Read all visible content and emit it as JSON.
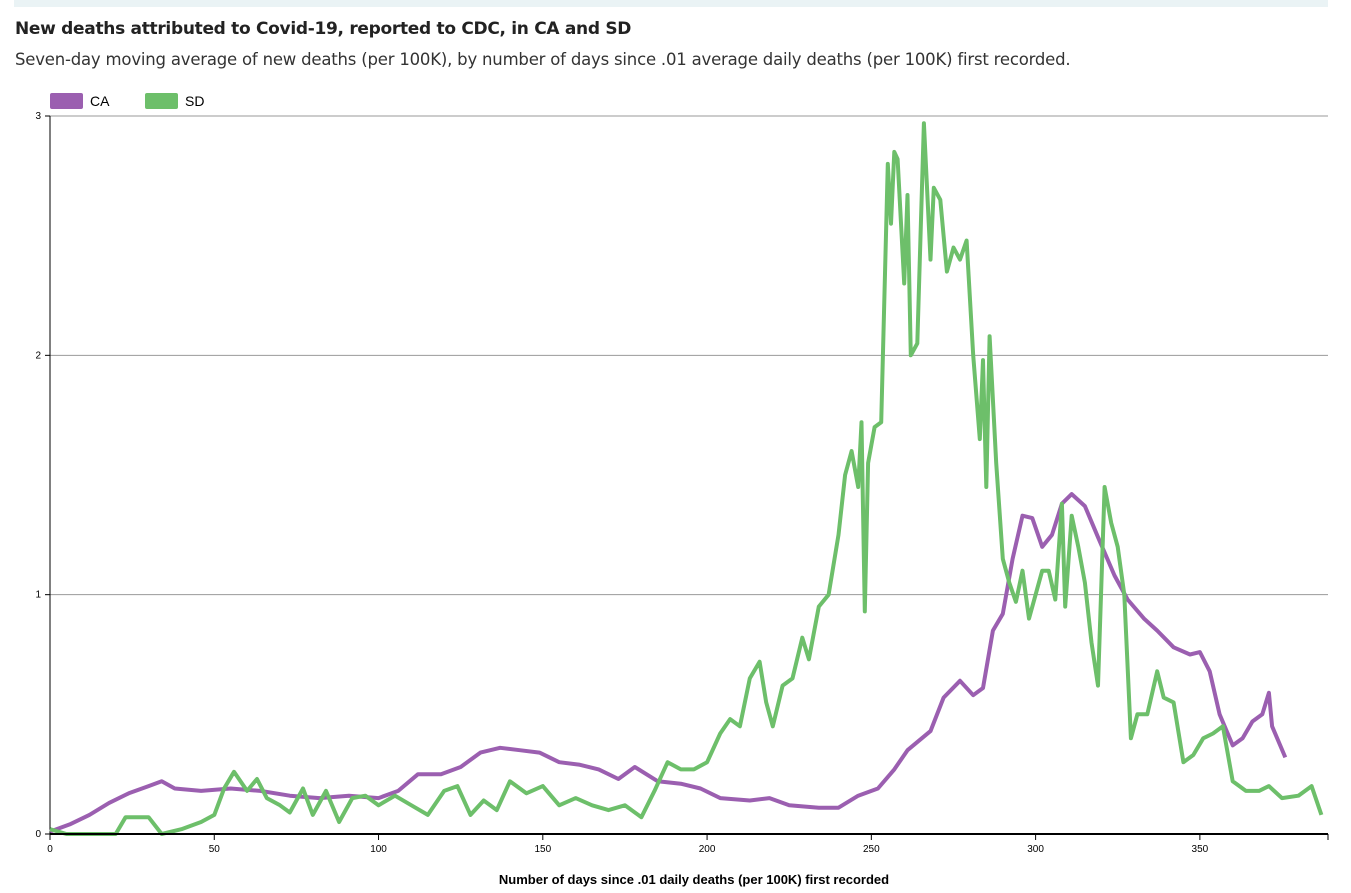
{
  "header": {
    "title": "New deaths attributed to Covid-19, reported to CDC, in CA and SD",
    "subtitle": "Seven-day moving average of new deaths (per 100K), by number of days since .01 average daily deaths (per 100K) first recorded."
  },
  "chart_data": {
    "type": "line",
    "title": "New deaths attributed to Covid-19, reported to CDC, in CA and SD",
    "xlabel": "Number of days since .01 daily deaths (per 100K) first recorded",
    "ylabel": "",
    "xlim": [
      0,
      389
    ],
    "ylim": [
      0,
      3
    ],
    "xticks": [
      "0",
      "50",
      "100",
      "150",
      "200",
      "250",
      "300",
      "350"
    ],
    "yticks": [
      "0",
      "1",
      "2",
      "3"
    ],
    "legend_position": "top-left",
    "series": [
      {
        "name": "CA",
        "color": "#9b5fb0",
        "points": [
          [
            0,
            0.01
          ],
          [
            6,
            0.04
          ],
          [
            12,
            0.08
          ],
          [
            18,
            0.13
          ],
          [
            24,
            0.17
          ],
          [
            30,
            0.2
          ],
          [
            34,
            0.22
          ],
          [
            38,
            0.19
          ],
          [
            46,
            0.18
          ],
          [
            55,
            0.19
          ],
          [
            64,
            0.18
          ],
          [
            73,
            0.16
          ],
          [
            82,
            0.15
          ],
          [
            91,
            0.16
          ],
          [
            100,
            0.15
          ],
          [
            106,
            0.18
          ],
          [
            112,
            0.25
          ],
          [
            119,
            0.25
          ],
          [
            125,
            0.28
          ],
          [
            131,
            0.34
          ],
          [
            137,
            0.36
          ],
          [
            143,
            0.35
          ],
          [
            149,
            0.34
          ],
          [
            155,
            0.3
          ],
          [
            161,
            0.29
          ],
          [
            167,
            0.27
          ],
          [
            173,
            0.23
          ],
          [
            178,
            0.28
          ],
          [
            185,
            0.22
          ],
          [
            192,
            0.21
          ],
          [
            198,
            0.19
          ],
          [
            204,
            0.15
          ],
          [
            213,
            0.14
          ],
          [
            219,
            0.15
          ],
          [
            225,
            0.12
          ],
          [
            234,
            0.11
          ],
          [
            240,
            0.11
          ],
          [
            246,
            0.16
          ],
          [
            252,
            0.19
          ],
          [
            257,
            0.27
          ],
          [
            261,
            0.35
          ],
          [
            268,
            0.43
          ],
          [
            272,
            0.57
          ],
          [
            277,
            0.64
          ],
          [
            281,
            0.58
          ],
          [
            284,
            0.61
          ],
          [
            287,
            0.85
          ],
          [
            290,
            0.92
          ],
          [
            293,
            1.15
          ],
          [
            296,
            1.33
          ],
          [
            299,
            1.32
          ],
          [
            302,
            1.2
          ],
          [
            305,
            1.25
          ],
          [
            308,
            1.38
          ],
          [
            311,
            1.42
          ],
          [
            315,
            1.37
          ],
          [
            319,
            1.24
          ],
          [
            324,
            1.08
          ],
          [
            328,
            0.98
          ],
          [
            333,
            0.9
          ],
          [
            337,
            0.85
          ],
          [
            342,
            0.78
          ],
          [
            347,
            0.75
          ],
          [
            350,
            0.76
          ],
          [
            353,
            0.68
          ],
          [
            356,
            0.5
          ],
          [
            360,
            0.37
          ],
          [
            363,
            0.4
          ],
          [
            366,
            0.47
          ],
          [
            369,
            0.5
          ],
          [
            371,
            0.59
          ],
          [
            372,
            0.45
          ],
          [
            376,
            0.32
          ]
        ]
      },
      {
        "name": "SD",
        "color": "#6dbf6a",
        "points": [
          [
            0,
            0.02
          ],
          [
            5,
            0
          ],
          [
            20,
            0
          ],
          [
            23,
            0.07
          ],
          [
            30,
            0.07
          ],
          [
            34,
            0
          ],
          [
            40,
            0.02
          ],
          [
            46,
            0.05
          ],
          [
            50,
            0.08
          ],
          [
            53,
            0.19
          ],
          [
            56,
            0.26
          ],
          [
            60,
            0.18
          ],
          [
            63,
            0.23
          ],
          [
            66,
            0.15
          ],
          [
            70,
            0.12
          ],
          [
            73,
            0.09
          ],
          [
            77,
            0.19
          ],
          [
            80,
            0.08
          ],
          [
            84,
            0.18
          ],
          [
            88,
            0.05
          ],
          [
            92,
            0.15
          ],
          [
            96,
            0.16
          ],
          [
            100,
            0.12
          ],
          [
            105,
            0.16
          ],
          [
            110,
            0.12
          ],
          [
            115,
            0.08
          ],
          [
            120,
            0.18
          ],
          [
            124,
            0.2
          ],
          [
            128,
            0.08
          ],
          [
            132,
            0.14
          ],
          [
            136,
            0.1
          ],
          [
            140,
            0.22
          ],
          [
            145,
            0.17
          ],
          [
            150,
            0.2
          ],
          [
            155,
            0.12
          ],
          [
            160,
            0.15
          ],
          [
            165,
            0.12
          ],
          [
            170,
            0.1
          ],
          [
            175,
            0.12
          ],
          [
            180,
            0.07
          ],
          [
            184,
            0.18
          ],
          [
            188,
            0.3
          ],
          [
            192,
            0.27
          ],
          [
            196,
            0.27
          ],
          [
            200,
            0.3
          ],
          [
            204,
            0.42
          ],
          [
            207,
            0.48
          ],
          [
            210,
            0.45
          ],
          [
            213,
            0.65
          ],
          [
            216,
            0.72
          ],
          [
            218,
            0.55
          ],
          [
            220,
            0.45
          ],
          [
            223,
            0.62
          ],
          [
            226,
            0.65
          ],
          [
            229,
            0.82
          ],
          [
            231,
            0.73
          ],
          [
            234,
            0.95
          ],
          [
            237,
            1.0
          ],
          [
            240,
            1.25
          ],
          [
            242,
            1.5
          ],
          [
            244,
            1.6
          ],
          [
            246,
            1.45
          ],
          [
            247,
            1.72
          ],
          [
            248,
            0.93
          ],
          [
            249,
            1.55
          ],
          [
            251,
            1.7
          ],
          [
            253,
            1.72
          ],
          [
            255,
            2.8
          ],
          [
            256,
            2.55
          ],
          [
            257,
            2.85
          ],
          [
            258,
            2.82
          ],
          [
            260,
            2.3
          ],
          [
            261,
            2.67
          ],
          [
            262,
            2.0
          ],
          [
            264,
            2.05
          ],
          [
            266,
            2.97
          ],
          [
            268,
            2.4
          ],
          [
            269,
            2.7
          ],
          [
            271,
            2.65
          ],
          [
            273,
            2.35
          ],
          [
            275,
            2.45
          ],
          [
            277,
            2.4
          ],
          [
            279,
            2.48
          ],
          [
            281,
            2.0
          ],
          [
            283,
            1.65
          ],
          [
            284,
            1.98
          ],
          [
            285,
            1.45
          ],
          [
            286,
            2.08
          ],
          [
            288,
            1.55
          ],
          [
            290,
            1.15
          ],
          [
            292,
            1.05
          ],
          [
            294,
            0.97
          ],
          [
            296,
            1.1
          ],
          [
            298,
            0.9
          ],
          [
            300,
            1.0
          ],
          [
            302,
            1.1
          ],
          [
            304,
            1.1
          ],
          [
            306,
            0.98
          ],
          [
            308,
            1.38
          ],
          [
            309,
            0.95
          ],
          [
            311,
            1.33
          ],
          [
            313,
            1.2
          ],
          [
            315,
            1.05
          ],
          [
            317,
            0.8
          ],
          [
            319,
            0.62
          ],
          [
            321,
            1.45
          ],
          [
            323,
            1.3
          ],
          [
            325,
            1.2
          ],
          [
            327,
            1.0
          ],
          [
            329,
            0.4
          ],
          [
            331,
            0.5
          ],
          [
            334,
            0.5
          ],
          [
            337,
            0.68
          ],
          [
            339,
            0.57
          ],
          [
            342,
            0.55
          ],
          [
            345,
            0.3
          ],
          [
            348,
            0.33
          ],
          [
            351,
            0.4
          ],
          [
            354,
            0.42
          ],
          [
            357,
            0.45
          ],
          [
            360,
            0.22
          ],
          [
            364,
            0.18
          ],
          [
            368,
            0.18
          ],
          [
            371,
            0.2
          ],
          [
            375,
            0.15
          ],
          [
            380,
            0.16
          ],
          [
            384,
            0.2
          ],
          [
            387,
            0.08
          ]
        ]
      }
    ]
  }
}
